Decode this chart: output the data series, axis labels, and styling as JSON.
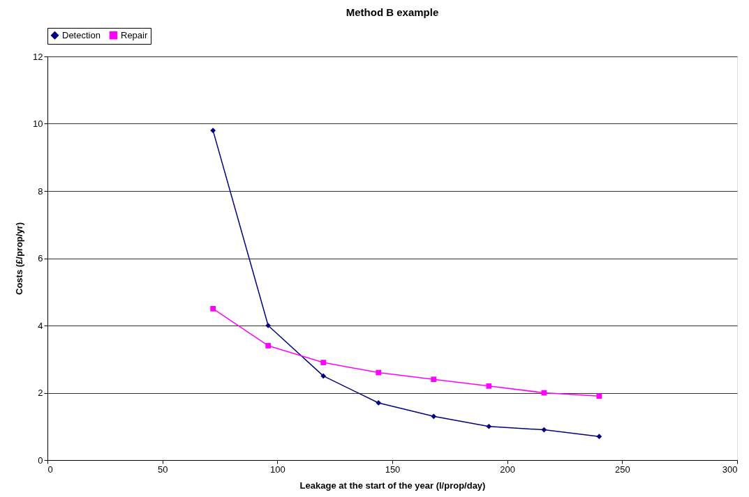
{
  "chart_data": {
    "type": "line",
    "title": "Method B example",
    "xlabel": "Leakage at the start of the year (l/prop/day)",
    "ylabel": "Costs (£/prop/yr)",
    "x": [
      72,
      96,
      120,
      144,
      168,
      192,
      216,
      240
    ],
    "series": [
      {
        "name": "Detection",
        "color": "#000080",
        "marker": "diamond",
        "values": [
          9.8,
          4.0,
          2.5,
          1.7,
          1.3,
          1.0,
          0.9,
          0.7
        ]
      },
      {
        "name": "Repair",
        "color": "#ff00ff",
        "marker": "square",
        "values": [
          4.5,
          3.4,
          2.9,
          2.6,
          2.4,
          2.2,
          2.0,
          1.9
        ]
      }
    ],
    "xlim": [
      0,
      300
    ],
    "xticks": [
      0,
      50,
      100,
      150,
      200,
      250,
      300
    ],
    "ylim": [
      0,
      12
    ],
    "yticks": [
      0,
      2,
      4,
      6,
      8,
      10,
      12
    ],
    "grid": "y",
    "legend": "top",
    "line_style": "solid"
  }
}
